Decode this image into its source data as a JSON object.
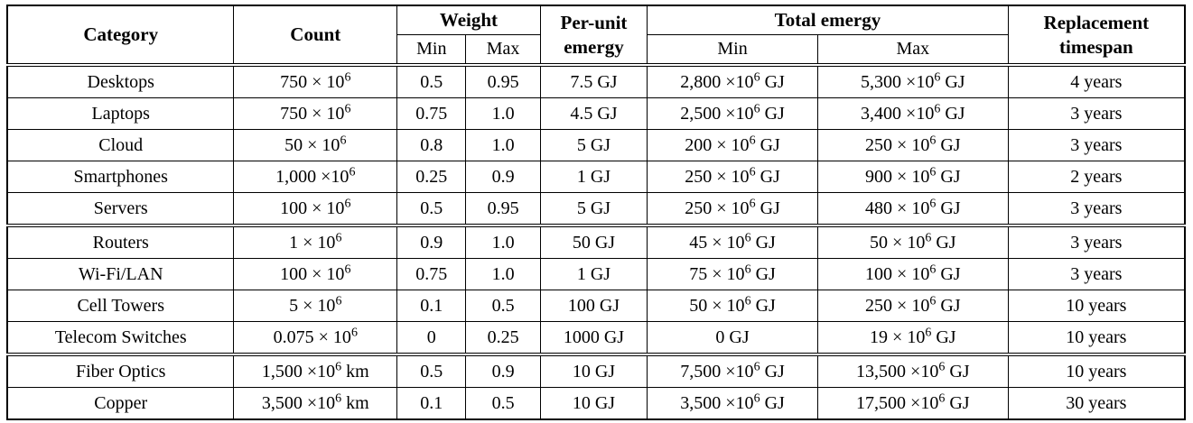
{
  "table": {
    "header": {
      "category": "Category",
      "count": "Count",
      "weight": "Weight",
      "weight_min": "Min",
      "weight_max": "Max",
      "per_unit_emergy": "Per-unit emergy",
      "total_emergy": "Total emergy",
      "total_min": "Min",
      "total_max": "Max",
      "replacement_timespan": "Replacement timespan"
    },
    "groups": [
      {
        "rows": [
          {
            "category": "Desktops",
            "count": "750 × 10^6",
            "weight_min": "0.5",
            "weight_max": "0.95",
            "per_unit_emergy": "7.5 GJ",
            "total_min": "2,800 ×10^6 GJ",
            "total_max": "5,300 ×10^6 GJ",
            "replacement": "4 years"
          },
          {
            "category": "Laptops",
            "count": "750 × 10^6",
            "weight_min": "0.75",
            "weight_max": "1.0",
            "per_unit_emergy": "4.5 GJ",
            "total_min": "2,500 ×10^6 GJ",
            "total_max": "3,400 ×10^6 GJ",
            "replacement": "3 years"
          },
          {
            "category": "Cloud",
            "count": "50 × 10^6",
            "weight_min": "0.8",
            "weight_max": "1.0",
            "per_unit_emergy": "5 GJ",
            "total_min": "200 × 10^6 GJ",
            "total_max": "250 × 10^6 GJ",
            "replacement": "3 years"
          },
          {
            "category": "Smartphones",
            "count": "1,000 ×10^6",
            "weight_min": "0.25",
            "weight_max": "0.9",
            "per_unit_emergy": "1 GJ",
            "total_min": "250 × 10^6 GJ",
            "total_max": "900 × 10^6 GJ",
            "replacement": "2 years"
          },
          {
            "category": "Servers",
            "count": "100 × 10^6",
            "weight_min": "0.5",
            "weight_max": "0.95",
            "per_unit_emergy": "5 GJ",
            "total_min": "250 × 10^6 GJ",
            "total_max": "480 × 10^6 GJ",
            "replacement": "3 years"
          }
        ]
      },
      {
        "rows": [
          {
            "category": "Routers",
            "count": "1 × 10^6",
            "weight_min": "0.9",
            "weight_max": "1.0",
            "per_unit_emergy": "50 GJ",
            "total_min": "45 × 10^6 GJ",
            "total_max": "50 × 10^6 GJ",
            "replacement": "3 years"
          },
          {
            "category": "Wi-Fi/LAN",
            "count": "100 × 10^6",
            "weight_min": "0.75",
            "weight_max": "1.0",
            "per_unit_emergy": "1 GJ",
            "total_min": "75 × 10^6 GJ",
            "total_max": "100 × 10^6 GJ",
            "replacement": "3 years"
          },
          {
            "category": "Cell Towers",
            "count": "5 × 10^6",
            "weight_min": "0.1",
            "weight_max": "0.5",
            "per_unit_emergy": "100 GJ",
            "total_min": "50 × 10^6 GJ",
            "total_max": "250 × 10^6 GJ",
            "replacement": "10 years"
          },
          {
            "category": "Telecom Switches",
            "count": "0.075 × 10^6",
            "weight_min": "0",
            "weight_max": "0.25",
            "per_unit_emergy": "1000 GJ",
            "total_min": "0 GJ",
            "total_max": "19 × 10^6 GJ",
            "replacement": "10 years"
          }
        ]
      },
      {
        "rows": [
          {
            "category": "Fiber Optics",
            "count": "1,500 ×10^6 km",
            "weight_min": "0.5",
            "weight_max": "0.9",
            "per_unit_emergy": "10 GJ",
            "total_min": "7,500 ×10^6 GJ",
            "total_max": "13,500 ×10^6 GJ",
            "replacement": "10 years"
          },
          {
            "category": "Copper",
            "count": "3,500 ×10^6 km",
            "weight_min": "0.1",
            "weight_max": "0.5",
            "per_unit_emergy": "10 GJ",
            "total_min": "3,500 ×10^6 GJ",
            "total_max": "17,500 ×10^6 GJ",
            "replacement": "30 years"
          }
        ]
      }
    ]
  },
  "colors": {
    "text": "#000000",
    "border": "#000000",
    "background": "#ffffff"
  }
}
